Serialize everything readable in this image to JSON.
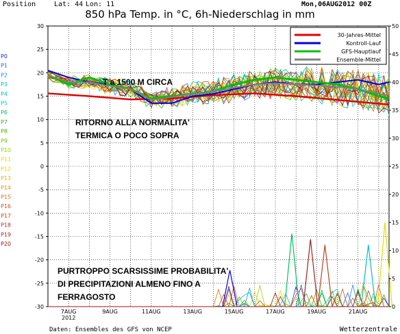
{
  "header": {
    "position_label": "Position",
    "lat_label": "Lat: 44",
    "lon_label": "Lon: 11",
    "date": "Mon,06AUG2012 00Z"
  },
  "footer": {
    "source": "Daten: Ensembles des GFS von NCEP",
    "brand": "Wetterzentrale"
  },
  "member_labels": [
    "P0",
    "P1",
    "P2",
    "P3",
    "P4",
    "P5",
    "P6",
    "P7",
    "P8",
    "P9",
    "P10",
    "P11",
    "P12",
    "P13",
    "P14",
    "P15",
    "P16",
    "P17",
    "P18",
    "P19",
    "P20"
  ],
  "member_colors": [
    "#2020d0",
    "#2060e0",
    "#1090e0",
    "#00b0e0",
    "#00c0c0",
    "#00d0a0",
    "#00c060",
    "#20b020",
    "#40b000",
    "#70c000",
    "#a0d000",
    "#e0e000",
    "#f0d000",
    "#f0b000",
    "#f09000",
    "#e07000",
    "#d05020",
    "#c04020",
    "#b03030",
    "#a02020",
    "#901010"
  ],
  "annotations": {
    "temp_note": "T a 1500 M CIRCA",
    "normal_note_1": "RITORNO ALLA NORMALITA'",
    "normal_note_2": "TERMICA O POCO SOPRA",
    "precip_note_1": "PURTROPPO SCARSISSIME PROBABILITA'",
    "precip_note_2": "DI PRECIPITAZIONI ALMENO FINO A",
    "precip_note_3": "FERRAGOSTO"
  },
  "chart_data": {
    "type": "line",
    "title": "850 hPa Temp. in °C, 6h-Niederschlag in mm",
    "x_tick_labels": [
      "7AUG\n2012",
      "9AUG",
      "11AUG",
      "13AUG",
      "15AUG",
      "17AUG",
      "19AUG",
      "21AUG"
    ],
    "x_range_days": [
      6,
      22.5
    ],
    "y_left": {
      "ylim": [
        -30,
        30
      ],
      "ticks": [
        -30,
        -25,
        -20,
        -15,
        -10,
        -5,
        0,
        5,
        10,
        15,
        20,
        25,
        30
      ],
      "unit": "°C"
    },
    "y_right": {
      "ylim": [
        0,
        50
      ],
      "ticks": [
        0,
        5,
        10,
        15,
        20,
        25,
        30,
        35,
        40,
        45,
        50
      ],
      "unit": "mm"
    },
    "grid": true,
    "legend_position": "top-right",
    "legend": [
      {
        "name": "30-Jahres-Mittel",
        "color": "#e00000"
      },
      {
        "name": "Kontroll-Lauf",
        "color": "#0000e0"
      },
      {
        "name": "GFS-Hauptlauf",
        "color": "#00c000"
      },
      {
        "name": "Ensemble-Mittel",
        "color": "#808080"
      }
    ],
    "series": [
      {
        "name": "30-Jahres-Mittel",
        "x": [
          6,
          8,
          10,
          12,
          14,
          16,
          18,
          20,
          22.5
        ],
        "values": [
          15.6,
          15.0,
          14.3,
          14.5,
          15.2,
          15.6,
          15.0,
          14.2,
          13.2
        ]
      },
      {
        "name": "Kontroll-Lauf",
        "x": [
          6,
          7,
          8,
          9,
          10,
          11,
          12,
          13,
          14,
          15,
          16,
          17,
          18,
          19,
          20,
          21,
          22,
          22.5
        ],
        "values": [
          20.5,
          19,
          18,
          17.5,
          16.5,
          13.5,
          13.5,
          15,
          15.5,
          16.5,
          17.5,
          18,
          17.5,
          17.5,
          18,
          18.5,
          17.5,
          18
        ]
      },
      {
        "name": "GFS-Hauptlauf",
        "x": [
          6,
          7,
          8,
          9,
          10,
          11,
          12,
          13,
          14,
          15,
          16,
          17,
          18,
          19,
          20,
          21,
          22,
          22.5
        ],
        "values": [
          19.5,
          17.5,
          19,
          17.5,
          16.5,
          14.5,
          15,
          15.5,
          16,
          17.5,
          18.5,
          19,
          18.5,
          18,
          17.5,
          16.5,
          15,
          14.5
        ]
      },
      {
        "name": "Ensemble-Mittel",
        "x": [
          6,
          7,
          8,
          9,
          10,
          11,
          12,
          13,
          14,
          15,
          16,
          17,
          18,
          19,
          20,
          21,
          22,
          22.5
        ],
        "values": [
          19.5,
          18,
          18,
          17.2,
          16.5,
          14.2,
          14.8,
          15.5,
          16,
          16.8,
          17.5,
          17.8,
          17.5,
          17.3,
          17,
          16.5,
          15.5,
          15.2
        ]
      }
    ],
    "precip_peaks_mm": [
      {
        "x": 14.8,
        "value": 6.5,
        "color": "#0000e0"
      },
      {
        "x": 17.8,
        "value": 13,
        "color": "#00c060"
      },
      {
        "x": 18.7,
        "value": 12,
        "color": "#a02020"
      },
      {
        "x": 19.4,
        "value": 11,
        "color": "#c04020"
      },
      {
        "x": 21.5,
        "value": 11,
        "color": "#00c0c0"
      },
      {
        "x": 22.3,
        "value": 15,
        "color": "#e0e000"
      }
    ]
  }
}
